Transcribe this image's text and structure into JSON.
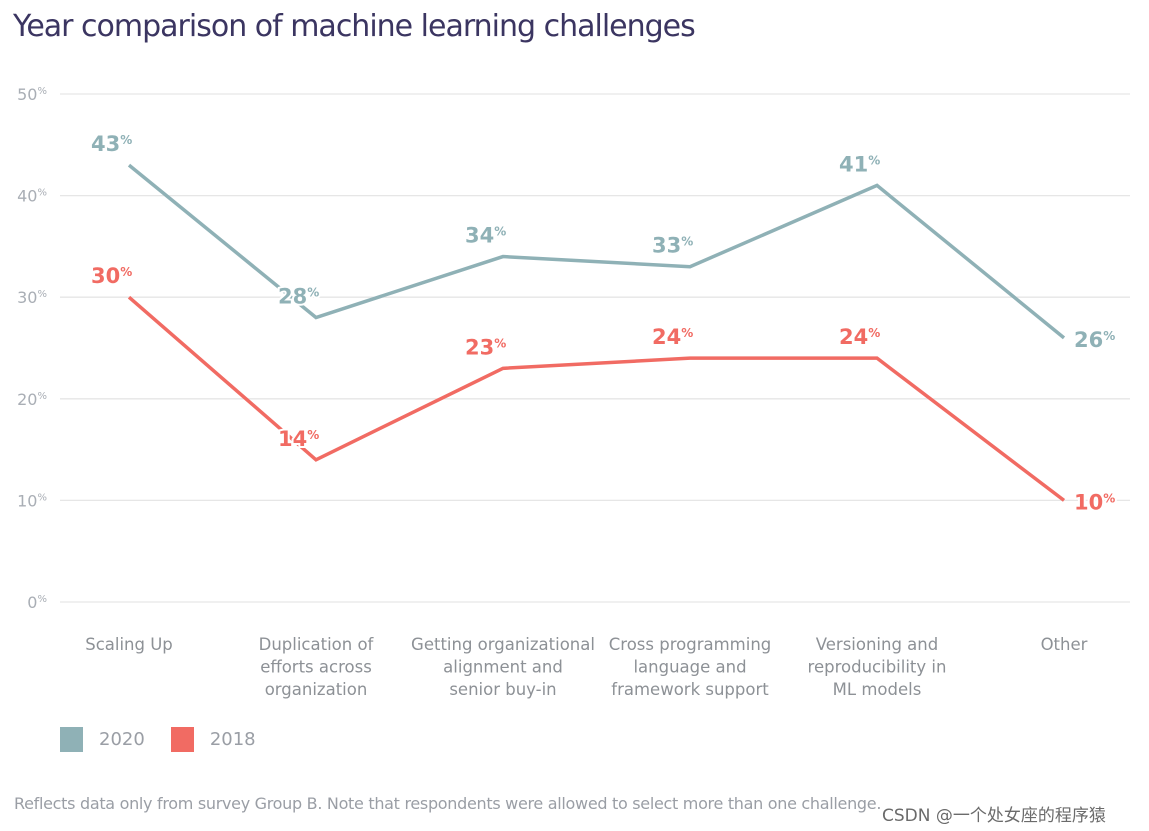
{
  "chart_data": {
    "type": "line",
    "title": "Year comparison of machine learning challenges",
    "xlabel": "",
    "ylabel": "",
    "ylim": [
      0,
      50
    ],
    "yticks": [
      0,
      10,
      20,
      30,
      40,
      50
    ],
    "ytick_suffix": "%",
    "grid": true,
    "legend_position": "bottom-left",
    "categories": [
      [
        "Scaling Up"
      ],
      [
        "Duplication of",
        "efforts across",
        "organization"
      ],
      [
        "Getting organizational",
        "alignment and",
        "senior buy-in"
      ],
      [
        "Cross programming",
        "language and",
        "framework support"
      ],
      [
        "Versioning and",
        "reproducibility in",
        "ML models"
      ],
      [
        "Other"
      ]
    ],
    "series": [
      {
        "name": "2020",
        "color": "#8fb1b6",
        "values": [
          43,
          28,
          34,
          33,
          41,
          26
        ]
      },
      {
        "name": "2018",
        "color": "#f16b63",
        "values": [
          30,
          14,
          23,
          24,
          24,
          10
        ]
      }
    ],
    "value_suffix": "%",
    "footnote": "Reflects data only from survey Group B. Note that respondents were allowed to select more than one challenge."
  },
  "legend": [
    {
      "label": "2020",
      "color": "#8fb1b6"
    },
    {
      "label": "2018",
      "color": "#f16b63"
    }
  ],
  "watermark": "CSDN @一个处女座的程序猿"
}
